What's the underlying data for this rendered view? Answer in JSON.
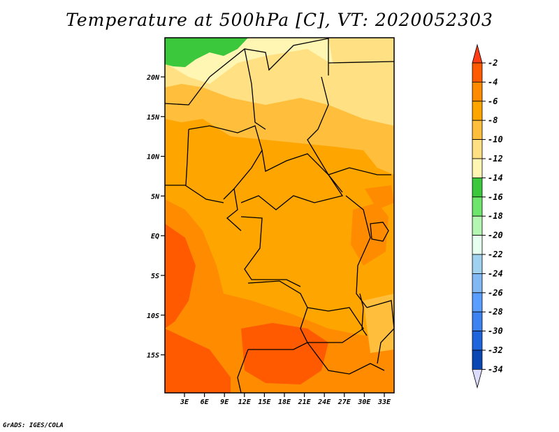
{
  "title": "Temperature at 500hPa [C], VT: 2020052303",
  "credit": "GrADS: IGES/COLA",
  "map": {
    "lat_ticks": [
      "20N",
      "15N",
      "10N",
      "5N",
      "EQ",
      "5S",
      "10S",
      "15S"
    ],
    "lon_ticks": [
      "3E",
      "6E",
      "9E",
      "12E",
      "15E",
      "18E",
      "21E",
      "24E",
      "27E",
      "30E",
      "33E"
    ]
  },
  "colorbar": {
    "labels": [
      "-2",
      "-4",
      "-6",
      "-8",
      "-10",
      "-12",
      "-14",
      "-16",
      "-18",
      "-20",
      "-22",
      "-24",
      "-26",
      "-28",
      "-30",
      "-32",
      "-34"
    ],
    "colors": [
      "#ff5a00",
      "#ff8c00",
      "#ffa500",
      "#ffbe3c",
      "#ffe082",
      "#fff6b4",
      "#3cc83c",
      "#6ee66e",
      "#b4f5b4",
      "#e6fff0",
      "#a0d2f0",
      "#82b9f5",
      "#5a9fff",
      "#3c82f0",
      "#1e64dc",
      "#0a46b4",
      "#0a1464"
    ],
    "top_color": "#ff3c14",
    "bottom_color": "#dcdcff"
  }
}
